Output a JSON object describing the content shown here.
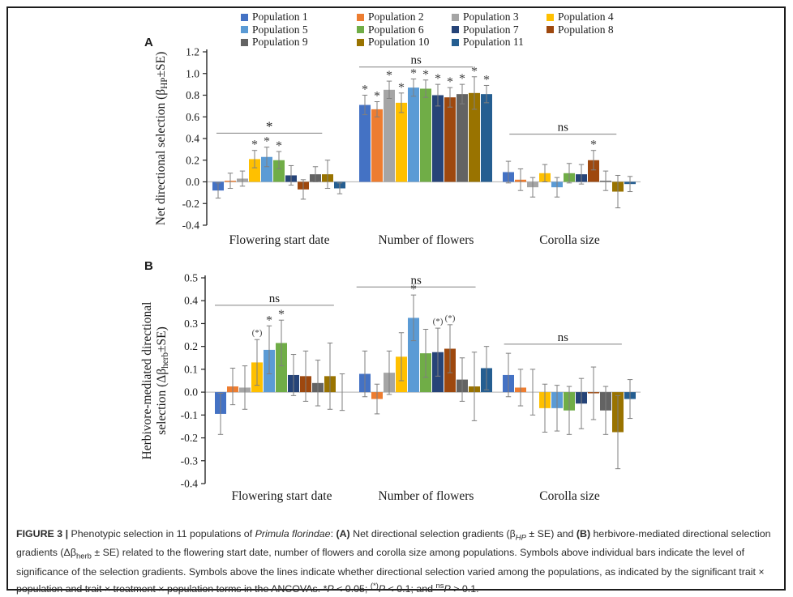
{
  "legend": {
    "items": [
      {
        "label": "Population 1",
        "color": "#4472C4"
      },
      {
        "label": "Population 2",
        "color": "#ED7D31"
      },
      {
        "label": "Population 3",
        "color": "#A5A5A5"
      },
      {
        "label": "Population 4",
        "color": "#FFC000"
      },
      {
        "label": "Population 5",
        "color": "#5B9BD5"
      },
      {
        "label": "Population 6",
        "color": "#70AD47"
      },
      {
        "label": "Population 7",
        "color": "#264478"
      },
      {
        "label": "Population 8",
        "color": "#9E480E"
      },
      {
        "label": "Population 9",
        "color": "#636363"
      },
      {
        "label": "Population 10",
        "color": "#997300"
      },
      {
        "label": "Population 11",
        "color": "#255E91"
      }
    ]
  },
  "chart_data": [
    {
      "type": "bar",
      "panel_label": "A",
      "ylabel_lines": [
        [
          {
            "t": "Net directional selection (β"
          },
          {
            "t": "HP",
            "sub": true
          },
          {
            "t": "±SE)"
          }
        ]
      ],
      "ylim": [
        -0.4,
        1.2
      ],
      "ytick_step": 0.2,
      "grid": false,
      "categories": [
        "Flowering start date",
        "Number of flowers",
        "Corolla size"
      ],
      "series": [
        {
          "name": "Population 1",
          "color": "#4472C4",
          "values": [
            -0.08,
            0.71,
            0.09
          ],
          "se": [
            0.07,
            0.09,
            0.1
          ],
          "sig": [
            "",
            "*",
            ""
          ]
        },
        {
          "name": "Population 2",
          "color": "#ED7D31",
          "values": [
            0.01,
            0.67,
            0.02
          ],
          "se": [
            0.07,
            0.07,
            0.1
          ],
          "sig": [
            "",
            "*",
            ""
          ]
        },
        {
          "name": "Population 3",
          "color": "#A5A5A5",
          "values": [
            0.03,
            0.85,
            -0.05
          ],
          "se": [
            0.07,
            0.08,
            0.09
          ],
          "sig": [
            "",
            "*",
            ""
          ]
        },
        {
          "name": "Population 4",
          "color": "#FFC000",
          "values": [
            0.21,
            0.73,
            0.08
          ],
          "se": [
            0.08,
            0.09,
            0.08
          ],
          "sig": [
            "*",
            "*",
            ""
          ]
        },
        {
          "name": "Population 5",
          "color": "#5B9BD5",
          "values": [
            0.23,
            0.87,
            -0.05
          ],
          "se": [
            0.09,
            0.08,
            0.09
          ],
          "sig": [
            "*",
            "*",
            ""
          ]
        },
        {
          "name": "Population 6",
          "color": "#70AD47",
          "values": [
            0.2,
            0.86,
            0.08
          ],
          "se": [
            0.08,
            0.08,
            0.09
          ],
          "sig": [
            "*",
            "*",
            ""
          ]
        },
        {
          "name": "Population 7",
          "color": "#264478",
          "values": [
            0.06,
            0.8,
            0.07
          ],
          "se": [
            0.09,
            0.1,
            0.09
          ],
          "sig": [
            "",
            "*",
            ""
          ]
        },
        {
          "name": "Population 8",
          "color": "#9E480E",
          "values": [
            -0.07,
            0.78,
            0.2
          ],
          "se": [
            0.09,
            0.09,
            0.09
          ],
          "sig": [
            "",
            "*",
            "*"
          ]
        },
        {
          "name": "Population 9",
          "color": "#636363",
          "values": [
            0.07,
            0.81,
            0.01
          ],
          "se": [
            0.07,
            0.09,
            0.09
          ],
          "sig": [
            "",
            "*",
            ""
          ]
        },
        {
          "name": "Population 10",
          "color": "#997300",
          "values": [
            0.07,
            0.82,
            -0.09
          ],
          "se": [
            0.13,
            0.15,
            0.15
          ],
          "sig": [
            "",
            "*",
            ""
          ]
        },
        {
          "name": "Population 11",
          "color": "#255E91",
          "values": [
            -0.06,
            0.81,
            -0.02
          ],
          "se": [
            0.05,
            0.08,
            0.07
          ],
          "sig": [
            "",
            "*",
            ""
          ]
        }
      ],
      "group_sig": [
        {
          "label": "*",
          "y": 0.45,
          "x1f": 0.03,
          "x2f": 0.82
        },
        {
          "label": "ns",
          "y": 1.06,
          "x1f": 0.0,
          "x2f": 0.85
        },
        {
          "label": "ns",
          "y": 0.44,
          "x1f": 0.05,
          "x2f": 0.85
        }
      ]
    },
    {
      "type": "bar",
      "panel_label": "B",
      "ylabel_lines": [
        [
          {
            "t": "Herbivore-mediated directional"
          }
        ],
        [
          {
            "t": "selection (Δβ"
          },
          {
            "t": "herb",
            "sub": true
          },
          {
            "t": "±SE)"
          }
        ]
      ],
      "ylim": [
        -0.4,
        0.5
      ],
      "ytick_step": 0.1,
      "grid": false,
      "categories": [
        "Flowering start date",
        "Number of flowers",
        "Corolla size"
      ],
      "series": [
        {
          "name": "Population 1",
          "color": "#4472C4",
          "values": [
            -0.095,
            0.08,
            0.075
          ],
          "se": [
            0.09,
            0.1,
            0.095
          ],
          "sig": [
            "",
            "",
            ""
          ]
        },
        {
          "name": "Population 2",
          "color": "#ED7D31",
          "values": [
            0.025,
            -0.03,
            0.02
          ],
          "se": [
            0.08,
            0.065,
            0.08
          ],
          "sig": [
            "",
            "",
            ""
          ]
        },
        {
          "name": "Population 3",
          "color": "#A5A5A5",
          "values": [
            0.02,
            0.085,
            0.0
          ],
          "se": [
            0.095,
            0.095,
            0.1
          ],
          "sig": [
            "",
            "",
            ""
          ]
        },
        {
          "name": "Population 4",
          "color": "#FFC000",
          "values": [
            0.13,
            0.155,
            -0.07
          ],
          "se": [
            0.1,
            0.105,
            0.105
          ],
          "sig": [
            "(*)",
            "",
            ""
          ]
        },
        {
          "name": "Population 5",
          "color": "#5B9BD5",
          "values": [
            0.185,
            0.325,
            -0.07
          ],
          "se": [
            0.105,
            0.1,
            0.1
          ],
          "sig": [
            "*",
            "*",
            ""
          ]
        },
        {
          "name": "Population 6",
          "color": "#70AD47",
          "values": [
            0.215,
            0.17,
            -0.08
          ],
          "se": [
            0.1,
            0.105,
            0.105
          ],
          "sig": [
            "*",
            "",
            ""
          ]
        },
        {
          "name": "Population 7",
          "color": "#264478",
          "values": [
            0.075,
            0.175,
            -0.05
          ],
          "se": [
            0.09,
            0.105,
            0.11
          ],
          "sig": [
            "",
            "(*)",
            ""
          ]
        },
        {
          "name": "Population 8",
          "color": "#9E480E",
          "values": [
            0.07,
            0.19,
            -0.005
          ],
          "se": [
            0.11,
            0.105,
            0.115
          ],
          "sig": [
            "",
            "(*)",
            ""
          ]
        },
        {
          "name": "Population 9",
          "color": "#636363",
          "values": [
            0.04,
            0.055,
            -0.08
          ],
          "se": [
            0.1,
            0.095,
            0.105
          ],
          "sig": [
            "",
            "",
            ""
          ]
        },
        {
          "name": "Population 10",
          "color": "#997300",
          "values": [
            0.07,
            0.025,
            -0.175
          ],
          "se": [
            0.145,
            0.15,
            0.16
          ],
          "sig": [
            "",
            "",
            ""
          ]
        },
        {
          "name": "Population 11",
          "color": "#255E91",
          "values": [
            0.0,
            0.105,
            -0.03
          ],
          "se": [
            0.08,
            0.095,
            0.085
          ],
          "sig": [
            "",
            "",
            ""
          ]
        }
      ],
      "group_sig": [
        {
          "label": "ns",
          "y": 0.38,
          "x1f": 0.0,
          "x2f": 0.89
        },
        {
          "label": "ns",
          "y": 0.46,
          "x1f": -0.02,
          "x2f": 0.87
        },
        {
          "label": "ns",
          "y": 0.21,
          "x1f": 0.01,
          "x2f": 0.89
        }
      ]
    }
  ],
  "caption": {
    "segments": [
      {
        "t": "FIGURE 3 | ",
        "b": true
      },
      {
        "t": "Phenotypic selection in 11 populations of "
      },
      {
        "t": "Primula florindae",
        "i": true
      },
      {
        "t": ": "
      },
      {
        "t": "(A)",
        "b": true
      },
      {
        "t": " Net directional selection gradients (β"
      },
      {
        "t": "HP",
        "sub": true,
        "i": true
      },
      {
        "t": " ± SE) and "
      },
      {
        "t": "(B)",
        "b": true
      },
      {
        "t": " herbivore-mediated directional selection gradients (Δβ"
      },
      {
        "t": "herb",
        "sub": true
      },
      {
        "t": " ± SE) related to the flowering start date, number of flowers and corolla size among populations. Symbols above individual bars indicate the level of significance of the selection gradients. Symbols above the lines indicate whether directional selection varied among the populations, as indicated by the significant trait × population and trait × treatment × population terms in the ANCOVAs. *"
      },
      {
        "t": "P",
        "i": true
      },
      {
        "t": " < 0.05; "
      },
      {
        "t": "(*)",
        "sup": true
      },
      {
        "t": "P",
        "i": true
      },
      {
        "t": " < 0.1; and "
      },
      {
        "t": "ns",
        "sup": true
      },
      {
        "t": "P",
        "i": true
      },
      {
        "t": " > 0.1."
      }
    ]
  }
}
